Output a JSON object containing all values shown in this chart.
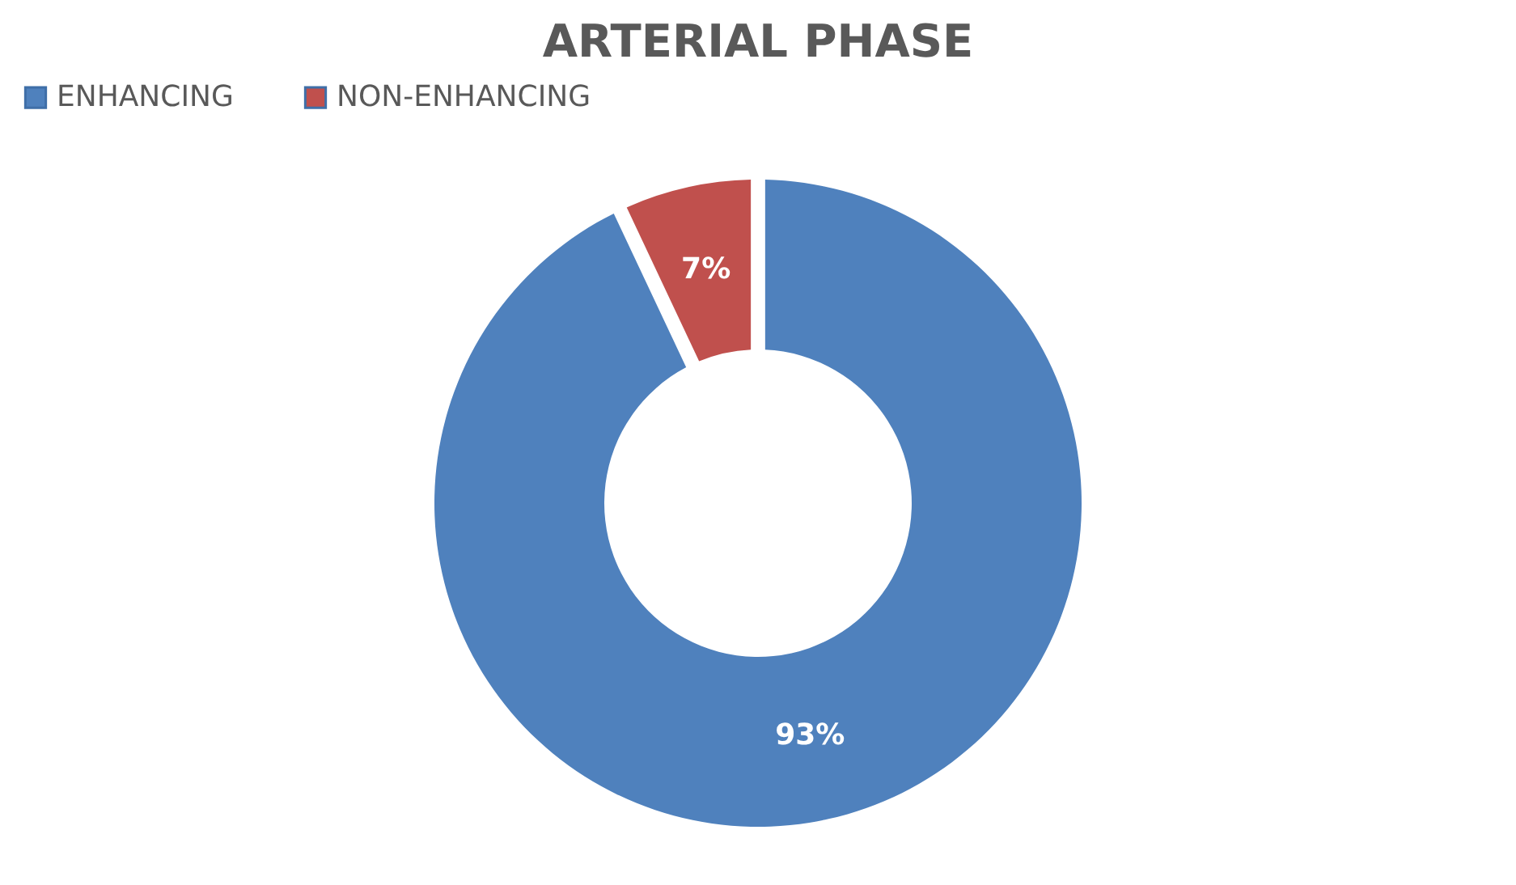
{
  "chart_data": {
    "type": "donut",
    "title": "ARTERIAL   PHASE",
    "categories": [
      "ENHANCING",
      "NON-ENHANCING"
    ],
    "values": [
      93,
      7
    ],
    "colors": [
      "#4f81bd",
      "#c0504d"
    ],
    "value_labels": [
      "93%",
      "7%"
    ],
    "legend": "top"
  }
}
